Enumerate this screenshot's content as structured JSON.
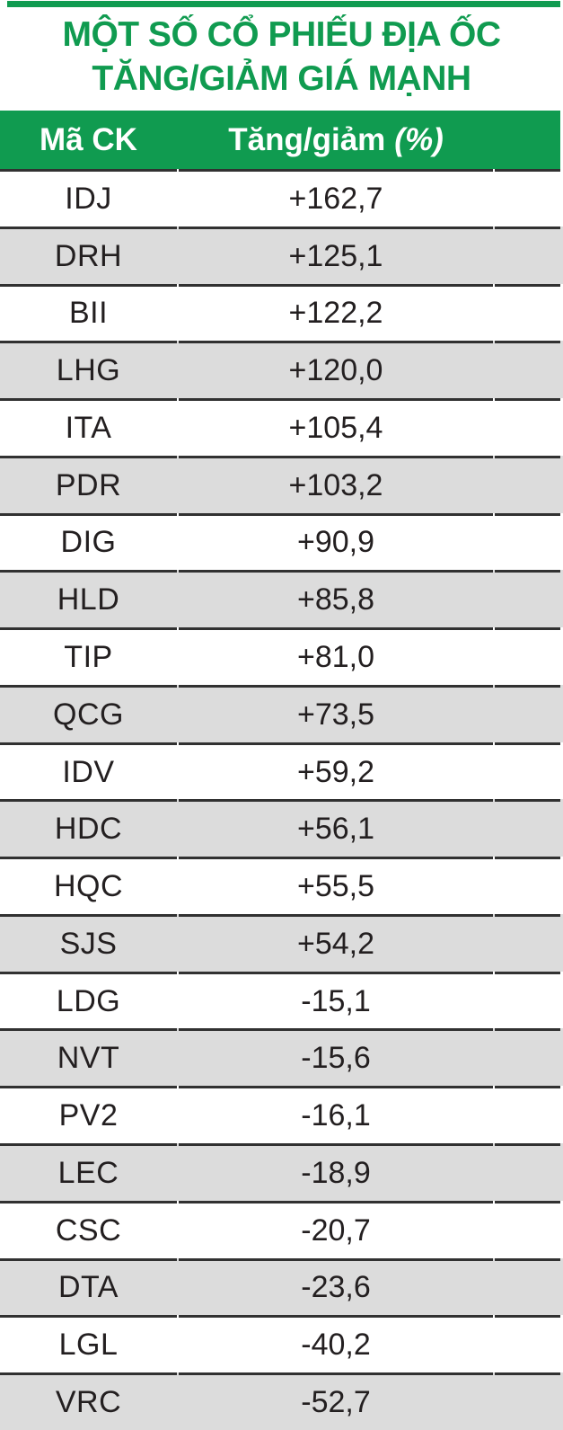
{
  "colors": {
    "accent_green": "#109b50",
    "row_stripe": "#dcdcdc",
    "border_dark": "#313131",
    "text_dark": "#231f20",
    "header_text": "#ffffff"
  },
  "title": {
    "line1": "MỘT SỐ CỔ PHIẾU ĐỊA ỐC",
    "line2": "TĂNG/GIẢM GIÁ MẠNH"
  },
  "table": {
    "header": {
      "code_label": "Mã CK",
      "change_label": "Tăng/giảm",
      "change_unit": "(%)"
    },
    "rows": [
      {
        "code": "IDJ",
        "change": "+162,7"
      },
      {
        "code": "DRH",
        "change": "+125,1"
      },
      {
        "code": "BII",
        "change": "+122,2"
      },
      {
        "code": "LHG",
        "change": "+120,0"
      },
      {
        "code": "ITA",
        "change": "+105,4"
      },
      {
        "code": "PDR",
        "change": "+103,2"
      },
      {
        "code": "DIG",
        "change": "+90,9"
      },
      {
        "code": "HLD",
        "change": "+85,8"
      },
      {
        "code": "TIP",
        "change": "+81,0"
      },
      {
        "code": "QCG",
        "change": "+73,5"
      },
      {
        "code": "IDV",
        "change": "+59,2"
      },
      {
        "code": "HDC",
        "change": "+56,1"
      },
      {
        "code": "HQC",
        "change": "+55,5"
      },
      {
        "code": "SJS",
        "change": "+54,2"
      },
      {
        "code": "LDG",
        "change": "-15,1"
      },
      {
        "code": "NVT",
        "change": "-15,6"
      },
      {
        "code": "PV2",
        "change": "-16,1"
      },
      {
        "code": "LEC",
        "change": "-18,9"
      },
      {
        "code": "CSC",
        "change": "-20,7"
      },
      {
        "code": "DTA",
        "change": "-23,6"
      },
      {
        "code": "LGL",
        "change": "-40,2"
      },
      {
        "code": "VRC",
        "change": "-52,7"
      }
    ]
  },
  "chart_data": {
    "type": "table",
    "title": "MỘT SỐ CỔ PHIẾU ĐỊA ỐC TĂNG/GIẢM GIÁ MẠNH",
    "columns": [
      "Mã CK",
      "Tăng/giảm (%)"
    ],
    "rows": [
      [
        "IDJ",
        162.7
      ],
      [
        "DRH",
        125.1
      ],
      [
        "BII",
        122.2
      ],
      [
        "LHG",
        120.0
      ],
      [
        "ITA",
        105.4
      ],
      [
        "PDR",
        103.2
      ],
      [
        "DIG",
        90.9
      ],
      [
        "HLD",
        85.8
      ],
      [
        "TIP",
        81.0
      ],
      [
        "QCG",
        73.5
      ],
      [
        "IDV",
        59.2
      ],
      [
        "HDC",
        56.1
      ],
      [
        "HQC",
        55.5
      ],
      [
        "SJS",
        54.2
      ],
      [
        "LDG",
        -15.1
      ],
      [
        "NVT",
        -15.6
      ],
      [
        "PV2",
        -16.1
      ],
      [
        "LEC",
        -18.9
      ],
      [
        "CSC",
        -20.7
      ],
      [
        "DTA",
        -23.6
      ],
      [
        "LGL",
        -40.2
      ],
      [
        "VRC",
        -52.7
      ]
    ],
    "decimal_separator": ",",
    "stripe": "alternating gray on even rows"
  }
}
